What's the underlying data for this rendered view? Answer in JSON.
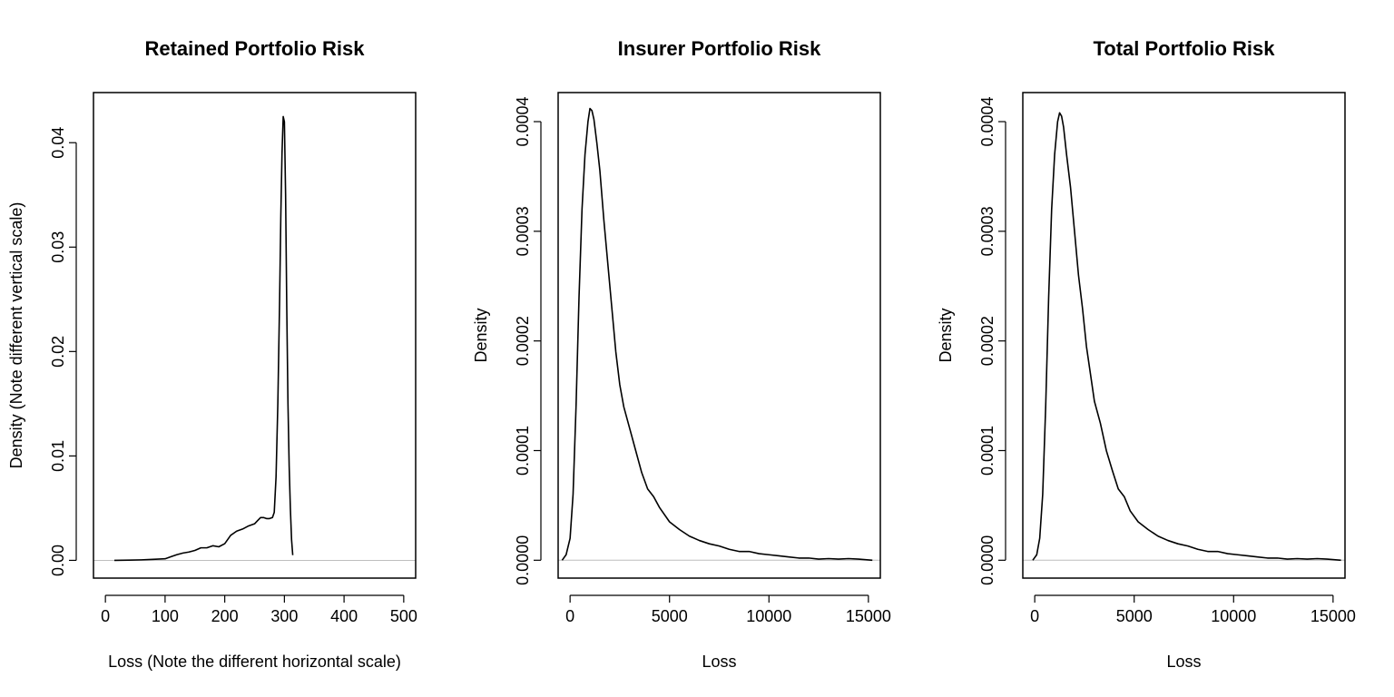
{
  "chart_data": [
    {
      "type": "line",
      "title": "Retained Portfolio Risk",
      "xlabel": "Loss (Note the different horizontal scale)",
      "ylabel": "Density (Note different vertical scale)",
      "xlim": [
        -20,
        520
      ],
      "ylim": [
        -0.0017,
        0.0448
      ],
      "xticks": [
        0,
        100,
        200,
        300,
        400,
        500
      ],
      "xtick_labels": [
        "0",
        "100",
        "200",
        "300",
        "400",
        "500"
      ],
      "yticks": [
        0,
        0.01,
        0.02,
        0.03,
        0.04
      ],
      "ytick_labels": [
        "0.00",
        "0.01",
        "0.02",
        "0.03",
        "0.04"
      ],
      "zero_line": true,
      "grid": false,
      "legend": "none",
      "series": [
        {
          "x": [
            15,
            40,
            60,
            80,
            100,
            110,
            120,
            130,
            140,
            150,
            160,
            170,
            180,
            190,
            200,
            205,
            210,
            220,
            230,
            240,
            250,
            255,
            260,
            265,
            270,
            275,
            280,
            283,
            286,
            289,
            292,
            294,
            296,
            298,
            300,
            302,
            304,
            306,
            308,
            310,
            312,
            314
          ],
          "y": [
            0,
            2e-05,
            5e-05,
            0.0001,
            0.00015,
            0.00035,
            0.00055,
            0.0007,
            0.0008,
            0.00095,
            0.0012,
            0.0012,
            0.0014,
            0.0013,
            0.0016,
            0.002,
            0.0024,
            0.0028,
            0.003,
            0.0033,
            0.0035,
            0.0038,
            0.0041,
            0.0041,
            0.004,
            0.004,
            0.0041,
            0.0046,
            0.008,
            0.015,
            0.025,
            0.033,
            0.039,
            0.0425,
            0.042,
            0.035,
            0.024,
            0.015,
            0.009,
            0.005,
            0.002,
            0.0005
          ]
        }
      ]
    },
    {
      "type": "line",
      "title": "Insurer Portfolio Risk",
      "xlabel": "Loss",
      "ylabel": "Density",
      "xlim": [
        -600,
        15600
      ],
      "ylim": [
        -1.63e-05,
        0.0004265
      ],
      "xticks": [
        0,
        5000,
        10000,
        15000
      ],
      "xtick_labels": [
        "0",
        "5000",
        "10000",
        "15000"
      ],
      "yticks": [
        0,
        0.0001,
        0.0002,
        0.0003,
        0.0004
      ],
      "ytick_labels": [
        "0.0000",
        "0.0001",
        "0.0002",
        "0.0003",
        "0.0004"
      ],
      "zero_line": true,
      "grid": false,
      "legend": "none",
      "series": [
        {
          "x": [
            -400,
            -200,
            0,
            150,
            300,
            450,
            600,
            750,
            900,
            1000,
            1100,
            1200,
            1350,
            1500,
            1700,
            1900,
            2100,
            2300,
            2500,
            2700,
            3000,
            3300,
            3600,
            3900,
            4200,
            4500,
            5000,
            5500,
            6000,
            6500,
            7000,
            7500,
            8000,
            8500,
            9000,
            9500,
            10000,
            10500,
            11000,
            11500,
            12000,
            12500,
            13000,
            13500,
            14000,
            14500,
            15200
          ],
          "y": [
            0,
            5e-06,
            2e-05,
            6e-05,
            0.00014,
            0.00024,
            0.00032,
            0.00037,
            0.0004,
            0.000412,
            0.00041,
            0.000402,
            0.00038,
            0.000355,
            0.00031,
            0.00027,
            0.00023,
            0.00019,
            0.00016,
            0.00014,
            0.00012,
            0.0001,
            8e-05,
            6.5e-05,
            5.8e-05,
            4.8e-05,
            3.5e-05,
            2.8e-05,
            2.2e-05,
            1.8e-05,
            1.5e-05,
            1.3e-05,
            1e-05,
            8e-06,
            8e-06,
            6e-06,
            5e-06,
            4e-06,
            3e-06,
            2e-06,
            2e-06,
            1e-06,
            1.5e-06,
            1e-06,
            1.5e-06,
            1e-06,
            0
          ]
        }
      ]
    },
    {
      "type": "line",
      "title": "Total Portfolio Risk",
      "xlabel": "Loss",
      "ylabel": "Density",
      "xlim": [
        -600,
        15600
      ],
      "ylim": [
        -1.63e-05,
        0.0004265
      ],
      "xticks": [
        0,
        5000,
        10000,
        15000
      ],
      "xtick_labels": [
        "0",
        "5000",
        "10000",
        "15000"
      ],
      "yticks": [
        0,
        0.0001,
        0.0002,
        0.0003,
        0.0004
      ],
      "ytick_labels": [
        "0.0000",
        "0.0001",
        "0.0002",
        "0.0003",
        "0.0004"
      ],
      "zero_line": true,
      "grid": false,
      "legend": "none",
      "series": [
        {
          "x": [
            -100,
            100,
            250,
            400,
            550,
            700,
            850,
            1000,
            1150,
            1250,
            1350,
            1450,
            1600,
            1800,
            2000,
            2200,
            2400,
            2600,
            2800,
            3000,
            3300,
            3600,
            3900,
            4200,
            4500,
            4800,
            5200,
            5700,
            6200,
            6700,
            7200,
            7700,
            8200,
            8700,
            9200,
            9700,
            10200,
            10700,
            11200,
            11700,
            12200,
            12700,
            13200,
            13700,
            14200,
            14700,
            15400
          ],
          "y": [
            0,
            5e-06,
            2e-05,
            6e-05,
            0.00014,
            0.00024,
            0.00032,
            0.00037,
            0.0004,
            0.000408,
            0.000405,
            0.000395,
            0.00037,
            0.00034,
            0.0003,
            0.00026,
            0.00023,
            0.000195,
            0.00017,
            0.000145,
            0.000125,
            0.0001,
            8.2e-05,
            6.5e-05,
            5.8e-05,
            4.5e-05,
            3.5e-05,
            2.8e-05,
            2.2e-05,
            1.8e-05,
            1.5e-05,
            1.3e-05,
            1e-05,
            8e-06,
            8e-06,
            6e-06,
            5e-06,
            4e-06,
            3e-06,
            2e-06,
            2e-06,
            1e-06,
            1.5e-06,
            1e-06,
            1.5e-06,
            1e-06,
            0
          ]
        }
      ]
    }
  ]
}
